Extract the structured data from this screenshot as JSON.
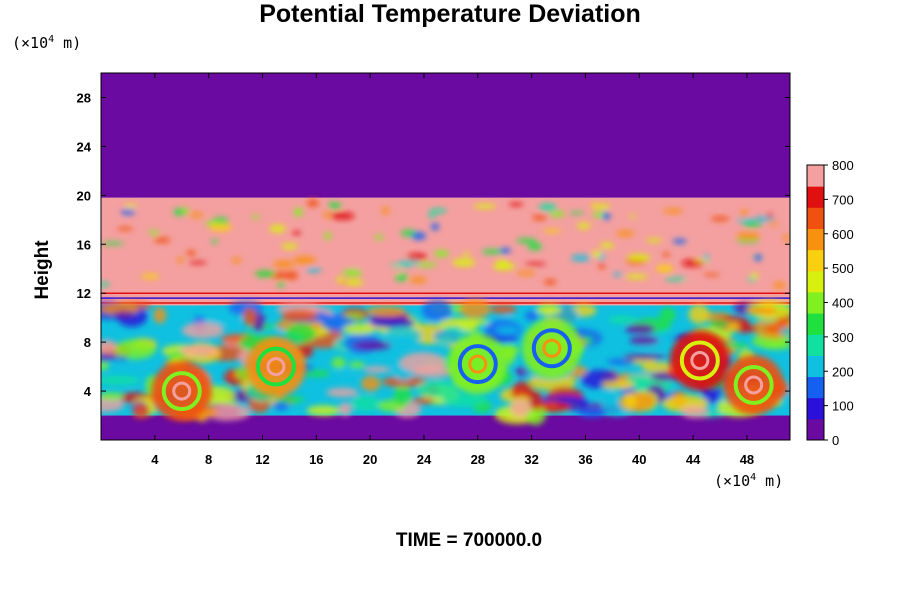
{
  "chart_data": {
    "type": "heatmap",
    "title": "Potential Temperature Deviation",
    "ylabel": "Height",
    "y_unit": {
      "prefix": "(×10",
      "exp": "4",
      "suffix": " m)"
    },
    "x_unit": {
      "prefix": "(×10",
      "exp": "4",
      "suffix": " m)"
    },
    "footer": "TIME = 700000.0",
    "xlim": [
      0,
      51.2
    ],
    "ylim": [
      0,
      30
    ],
    "x_ticks": [
      4,
      8,
      12,
      16,
      20,
      24,
      28,
      32,
      36,
      40,
      44,
      48
    ],
    "y_ticks": [
      4,
      8,
      12,
      16,
      20,
      24,
      28
    ],
    "colorbar": {
      "min": 0,
      "max": 800,
      "ticks": [
        0,
        100,
        200,
        300,
        400,
        500,
        600,
        700,
        800
      ],
      "colors": [
        "#6a0aa0",
        "#2a10d8",
        "#1560f0",
        "#10c0e0",
        "#10e0a0",
        "#20e040",
        "#80f020",
        "#d8f010",
        "#f8d010",
        "#f89010",
        "#f05010",
        "#e01010",
        "#f4a0a0"
      ]
    },
    "field": {
      "lower_layer_top": 2.0,
      "turbulent_layer_top": 10.5,
      "stable_band": [
        11.0,
        12.3
      ],
      "upper_layer_top": 19.8,
      "vortices": [
        {
          "x": 6.0,
          "y": 4.0,
          "value": 620
        },
        {
          "x": 13.0,
          "y": 6.0,
          "value": 600
        },
        {
          "x": 28.0,
          "y": 6.2,
          "value": 430
        },
        {
          "x": 33.5,
          "y": 7.5,
          "value": 420
        },
        {
          "x": 44.5,
          "y": 6.5,
          "value": 700
        },
        {
          "x": 48.5,
          "y": 4.5,
          "value": 650
        }
      ]
    }
  }
}
